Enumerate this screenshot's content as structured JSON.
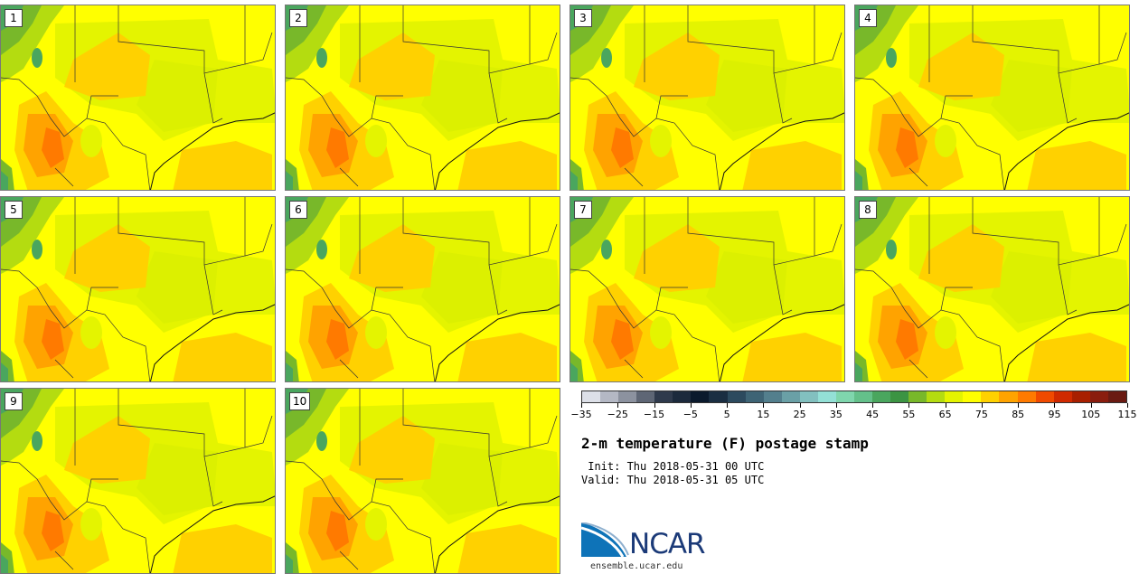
{
  "panels": [
    {
      "label": "1"
    },
    {
      "label": "2"
    },
    {
      "label": "3"
    },
    {
      "label": "4"
    },
    {
      "label": "5"
    },
    {
      "label": "6"
    },
    {
      "label": "7"
    },
    {
      "label": "8"
    },
    {
      "label": "9"
    },
    {
      "label": "10"
    }
  ],
  "colorbar": {
    "colors": [
      "#dde0e8",
      "#b4b8c4",
      "#8c929f",
      "#5e6675",
      "#2f3a4c",
      "#1c2a3c",
      "#0b1a2d",
      "#1a2e42",
      "#2c4a5e",
      "#3e6475",
      "#537f8d",
      "#6aa0a6",
      "#82c0bf",
      "#93e0d6",
      "#7fd6ad",
      "#64c08a",
      "#4aa65e",
      "#3c9443",
      "#78b82a",
      "#b4dc10",
      "#e4f400",
      "#ffff00",
      "#ffd100",
      "#ffa300",
      "#ff7a00",
      "#f04a00",
      "#d02a00",
      "#a81f00",
      "#8a1d0e",
      "#6a1a12"
    ],
    "tick_labels": [
      "−35",
      "−25",
      "−15",
      "−5",
      "5",
      "15",
      "25",
      "35",
      "45",
      "55",
      "65",
      "75",
      "85",
      "95",
      "105",
      "115"
    ]
  },
  "title": "2-m temperature (F) postage stamp",
  "init": " Init: Thu 2018-05-31 00 UTC",
  "valid": "Valid: Thu 2018-05-31 05 UTC",
  "logo": {
    "name": "NCAR",
    "url": "ensemble.ucar.edu"
  }
}
